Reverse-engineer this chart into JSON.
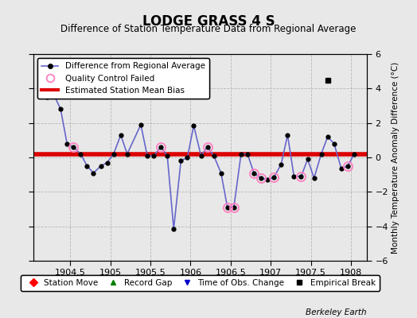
{
  "title": "LODGE GRASS 4 S",
  "subtitle": "Difference of Station Temperature Data from Regional Average",
  "ylabel": "Monthly Temperature Anomaly Difference (°C)",
  "background_color": "#e8e8e8",
  "plot_bg_color": "#e8e8e8",
  "bias_line": 0.2,
  "xlim": [
    1904.04,
    1908.2
  ],
  "ylim": [
    -6,
    6
  ],
  "yticks": [
    -6,
    -4,
    -2,
    0,
    2,
    4,
    6
  ],
  "xticks": [
    1904.5,
    1905.0,
    1905.5,
    1906.0,
    1906.5,
    1907.0,
    1907.5,
    1908.0
  ],
  "xticklabels": [
    "1904.5",
    "1905",
    "1905.5",
    "1906",
    "1906.5",
    "1907",
    "1907.5",
    "1908"
  ],
  "line_color": "#6666cc",
  "line_marker_color": "#000000",
  "bias_color": "#dd0000",
  "data_x": [
    1904.21,
    1904.29,
    1904.38,
    1904.46,
    1904.54,
    1904.63,
    1904.71,
    1904.79,
    1904.88,
    1904.96,
    1905.04,
    1905.13,
    1905.21,
    1905.38,
    1905.46,
    1905.54,
    1905.63,
    1905.71,
    1905.79,
    1905.88,
    1905.96,
    1906.04,
    1906.13,
    1906.21,
    1906.29,
    1906.38,
    1906.46,
    1906.54,
    1906.63,
    1906.71,
    1906.79,
    1906.88,
    1906.96,
    1907.04,
    1907.13,
    1907.21,
    1907.29,
    1907.38,
    1907.46,
    1907.54,
    1907.63,
    1907.71,
    1907.79,
    1907.88,
    1907.96,
    1908.04
  ],
  "data_y": [
    3.5,
    3.7,
    2.8,
    0.8,
    0.6,
    0.2,
    -0.5,
    -0.9,
    -0.5,
    -0.3,
    0.2,
    1.3,
    0.2,
    1.9,
    0.1,
    0.1,
    0.6,
    0.1,
    -4.15,
    -0.2,
    0.0,
    1.85,
    0.1,
    0.6,
    0.1,
    -0.9,
    -2.9,
    -2.9,
    0.2,
    0.2,
    -0.9,
    -1.2,
    -1.3,
    -1.15,
    -0.4,
    1.3,
    -1.1,
    -1.1,
    -0.1,
    -1.2,
    0.2,
    1.2,
    0.8,
    -0.65,
    -0.5,
    0.2
  ],
  "qc_failed_x": [
    1904.54,
    1905.63,
    1906.21,
    1906.46,
    1906.54,
    1906.79,
    1906.88,
    1907.04,
    1907.38,
    1907.96
  ],
  "qc_failed_y": [
    0.6,
    0.6,
    0.6,
    -2.9,
    -2.9,
    -0.9,
    -1.2,
    -1.15,
    -1.1,
    -0.5
  ],
  "empirical_break_x": [
    1907.71
  ],
  "empirical_break_y": [
    4.5
  ]
}
